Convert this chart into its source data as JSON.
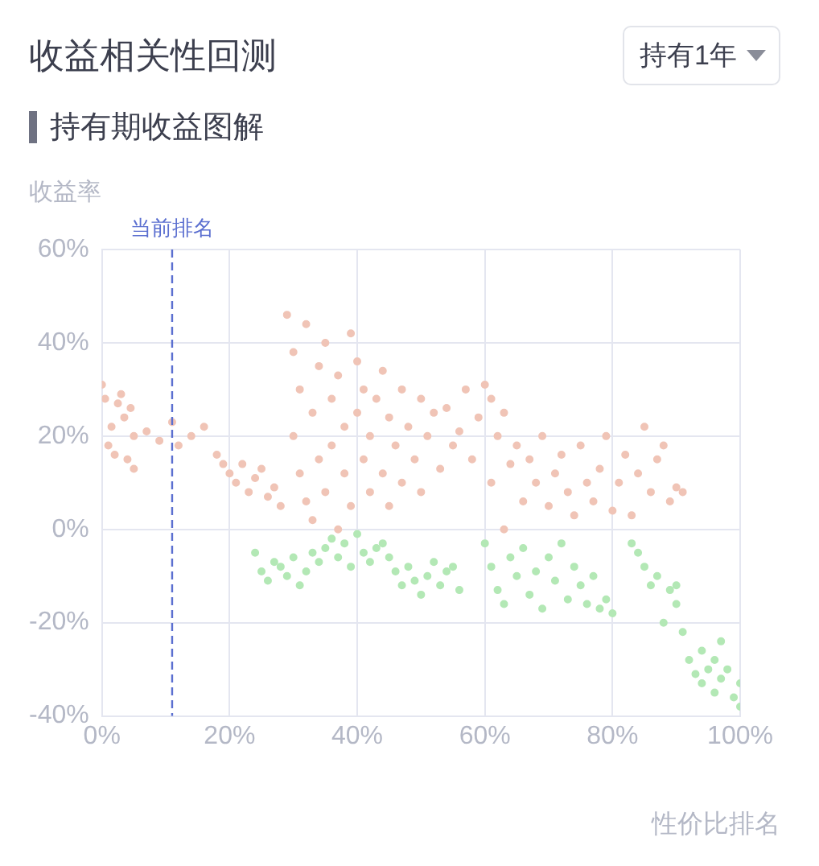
{
  "chart_data": {
    "type": "scatter",
    "title": "收益相关性回测",
    "subtitle": "持有期收益图解",
    "ylabel": "收益率",
    "xlabel": "性价比排名",
    "annotations": [
      "持有1年"
    ],
    "xlim": [
      0,
      100
    ],
    "ylim": [
      -40,
      60
    ],
    "xticks": [
      {
        "value": 0,
        "label": "0%"
      },
      {
        "value": 20,
        "label": "20%"
      },
      {
        "value": 40,
        "label": "40%"
      },
      {
        "value": 60,
        "label": "60%"
      },
      {
        "value": 80,
        "label": "80%"
      },
      {
        "value": 100,
        "label": "100%"
      }
    ],
    "yticks": [
      {
        "value": -40,
        "label": "-40%"
      },
      {
        "value": -20,
        "label": "-20%"
      },
      {
        "value": 0,
        "label": "0%"
      },
      {
        "value": 20,
        "label": "20%"
      },
      {
        "value": 40,
        "label": "40%"
      },
      {
        "value": 60,
        "label": "60%"
      }
    ],
    "grid": true,
    "legend": false,
    "marker": "circle",
    "ref_lines": [
      {
        "axis": "x",
        "value": 11,
        "label": "当前排名",
        "color": "#5b6fd0",
        "line_style": "dashed"
      }
    ],
    "series": [
      {
        "color": "#f0c4b6",
        "x": [
          0,
          0.5,
          1,
          1.5,
          2,
          2.5,
          3,
          3.5,
          4,
          4.5,
          5,
          5,
          7,
          9,
          11,
          12,
          14,
          16,
          18,
          19,
          20,
          21,
          22,
          23,
          24,
          25,
          26,
          27,
          28,
          29,
          30,
          30,
          31,
          31,
          32,
          32,
          33,
          33,
          34,
          34,
          35,
          35,
          36,
          36,
          37,
          37,
          38,
          38,
          39,
          39,
          40,
          40,
          41,
          41,
          42,
          42,
          43,
          44,
          44,
          45,
          45,
          46,
          47,
          47,
          48,
          49,
          50,
          50,
          51,
          52,
          53,
          54,
          55,
          56,
          57,
          58,
          59,
          60,
          61,
          61,
          62,
          63,
          63,
          64,
          65,
          66,
          67,
          68,
          69,
          70,
          71,
          72,
          73,
          74,
          75,
          76,
          77,
          78,
          79,
          80,
          81,
          82,
          83,
          84,
          85,
          86,
          87,
          88,
          89,
          90,
          91
        ],
        "values": [
          31,
          28,
          18,
          22,
          16,
          27,
          29,
          24,
          15,
          26,
          20,
          13,
          21,
          19,
          23,
          18,
          20,
          22,
          16,
          14,
          12,
          10,
          14,
          8,
          11,
          13,
          7,
          9,
          5,
          46,
          38,
          20,
          30,
          12,
          44,
          6,
          25,
          2,
          35,
          15,
          40,
          8,
          28,
          18,
          0,
          33,
          22,
          12,
          42,
          5,
          36,
          25,
          30,
          15,
          20,
          8,
          28,
          34,
          12,
          24,
          5,
          18,
          30,
          10,
          22,
          15,
          28,
          8,
          20,
          25,
          13,
          26,
          18,
          21,
          30,
          15,
          24,
          31,
          10,
          28,
          20,
          0,
          25,
          14,
          18,
          6,
          15,
          10,
          20,
          5,
          12,
          16,
          8,
          3,
          18,
          10,
          6,
          13,
          20,
          4,
          10,
          16,
          3,
          12,
          22,
          8,
          15,
          18,
          6,
          9,
          8
        ]
      },
      {
        "color": "#b3e8b5",
        "x": [
          24,
          25,
          26,
          27,
          28,
          29,
          30,
          31,
          32,
          33,
          34,
          35,
          36,
          37,
          38,
          39,
          40,
          41,
          42,
          43,
          44,
          45,
          46,
          47,
          48,
          49,
          50,
          51,
          52,
          53,
          54,
          55,
          56,
          60,
          61,
          62,
          63,
          64,
          65,
          66,
          67,
          68,
          69,
          70,
          71,
          72,
          73,
          74,
          75,
          76,
          77,
          78,
          79,
          80,
          83,
          84,
          85,
          86,
          87,
          88,
          89,
          90,
          90,
          91,
          92,
          93,
          94,
          94,
          95,
          96,
          96,
          97,
          97,
          98,
          99,
          100,
          100
        ],
        "values": [
          -5,
          -9,
          -11,
          -7,
          -8,
          -10,
          -6,
          -12,
          -9,
          -5,
          -7,
          -4,
          -2,
          -6,
          -3,
          -8,
          -1,
          -5,
          -7,
          -4,
          -3,
          -6,
          -9,
          -12,
          -8,
          -11,
          -14,
          -10,
          -7,
          -12,
          -9,
          -8,
          -13,
          -3,
          -8,
          -13,
          -16,
          -6,
          -10,
          -4,
          -14,
          -9,
          -17,
          -6,
          -11,
          -3,
          -15,
          -8,
          -12,
          -16,
          -10,
          -17,
          -15,
          -18,
          -3,
          -5,
          -8,
          -12,
          -10,
          -20,
          -13,
          -16,
          -12,
          -22,
          -28,
          -31,
          -26,
          -33,
          -30,
          -35,
          -28,
          -24,
          -32,
          -30,
          -36,
          -38,
          -33
        ]
      }
    ]
  }
}
